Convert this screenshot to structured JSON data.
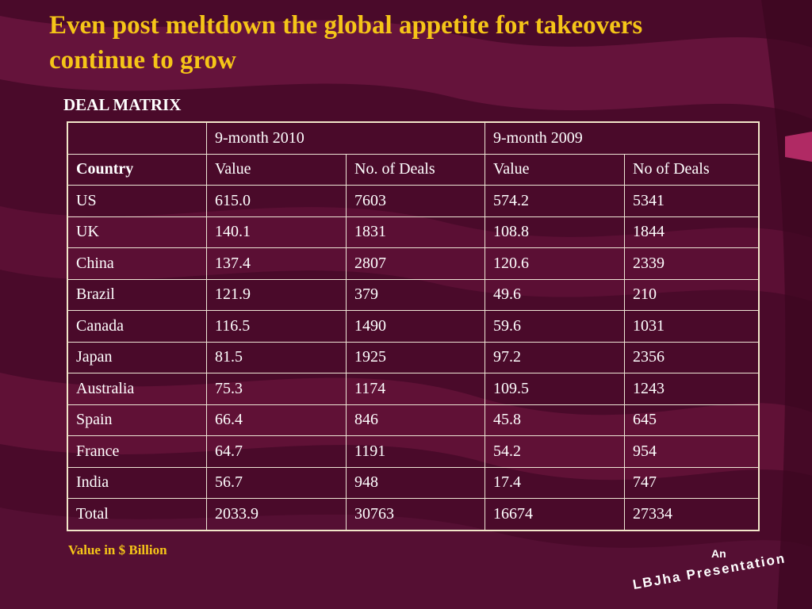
{
  "slide": {
    "title": "Even post meltdown the global appetite for takeovers continue to grow",
    "subtitle": "DEAL MATRIX",
    "note": "Value in $ Billion",
    "footer_an": "An",
    "footer_brand": "LBJha Presentation"
  },
  "table": {
    "period_headers": [
      "",
      "9-month 2010",
      "9-month 2009"
    ],
    "column_headers": [
      "Country",
      "Value",
      "No. of Deals",
      "Value",
      "No of Deals"
    ],
    "rows": [
      [
        "US",
        "615.0",
        "7603",
        "574.2",
        "5341"
      ],
      [
        "UK",
        "140.1",
        "1831",
        "108.8",
        "1844"
      ],
      [
        "China",
        "137.4",
        "2807",
        "120.6",
        "2339"
      ],
      [
        "Brazil",
        "121.9",
        "379",
        "49.6",
        "210"
      ],
      [
        "Canada",
        "116.5",
        "1490",
        "59.6",
        "1031"
      ],
      [
        "Japan",
        "81.5",
        "1925",
        "97.2",
        "2356"
      ],
      [
        "Australia",
        "75.3",
        "1174",
        "109.5",
        "1243"
      ],
      [
        "Spain",
        "66.4",
        "846",
        "45.8",
        "645"
      ],
      [
        "France",
        "64.7",
        "1191",
        "54.2",
        "954"
      ],
      [
        "India",
        "56.7",
        "948",
        "17.4",
        "747"
      ],
      [
        "Total",
        "2033.9",
        "30763",
        "16674",
        "27334"
      ]
    ]
  },
  "colors": {
    "background": "#4a0a2a",
    "title": "#f5c518",
    "text": "#ffffff",
    "table_border": "#efe6d6"
  }
}
